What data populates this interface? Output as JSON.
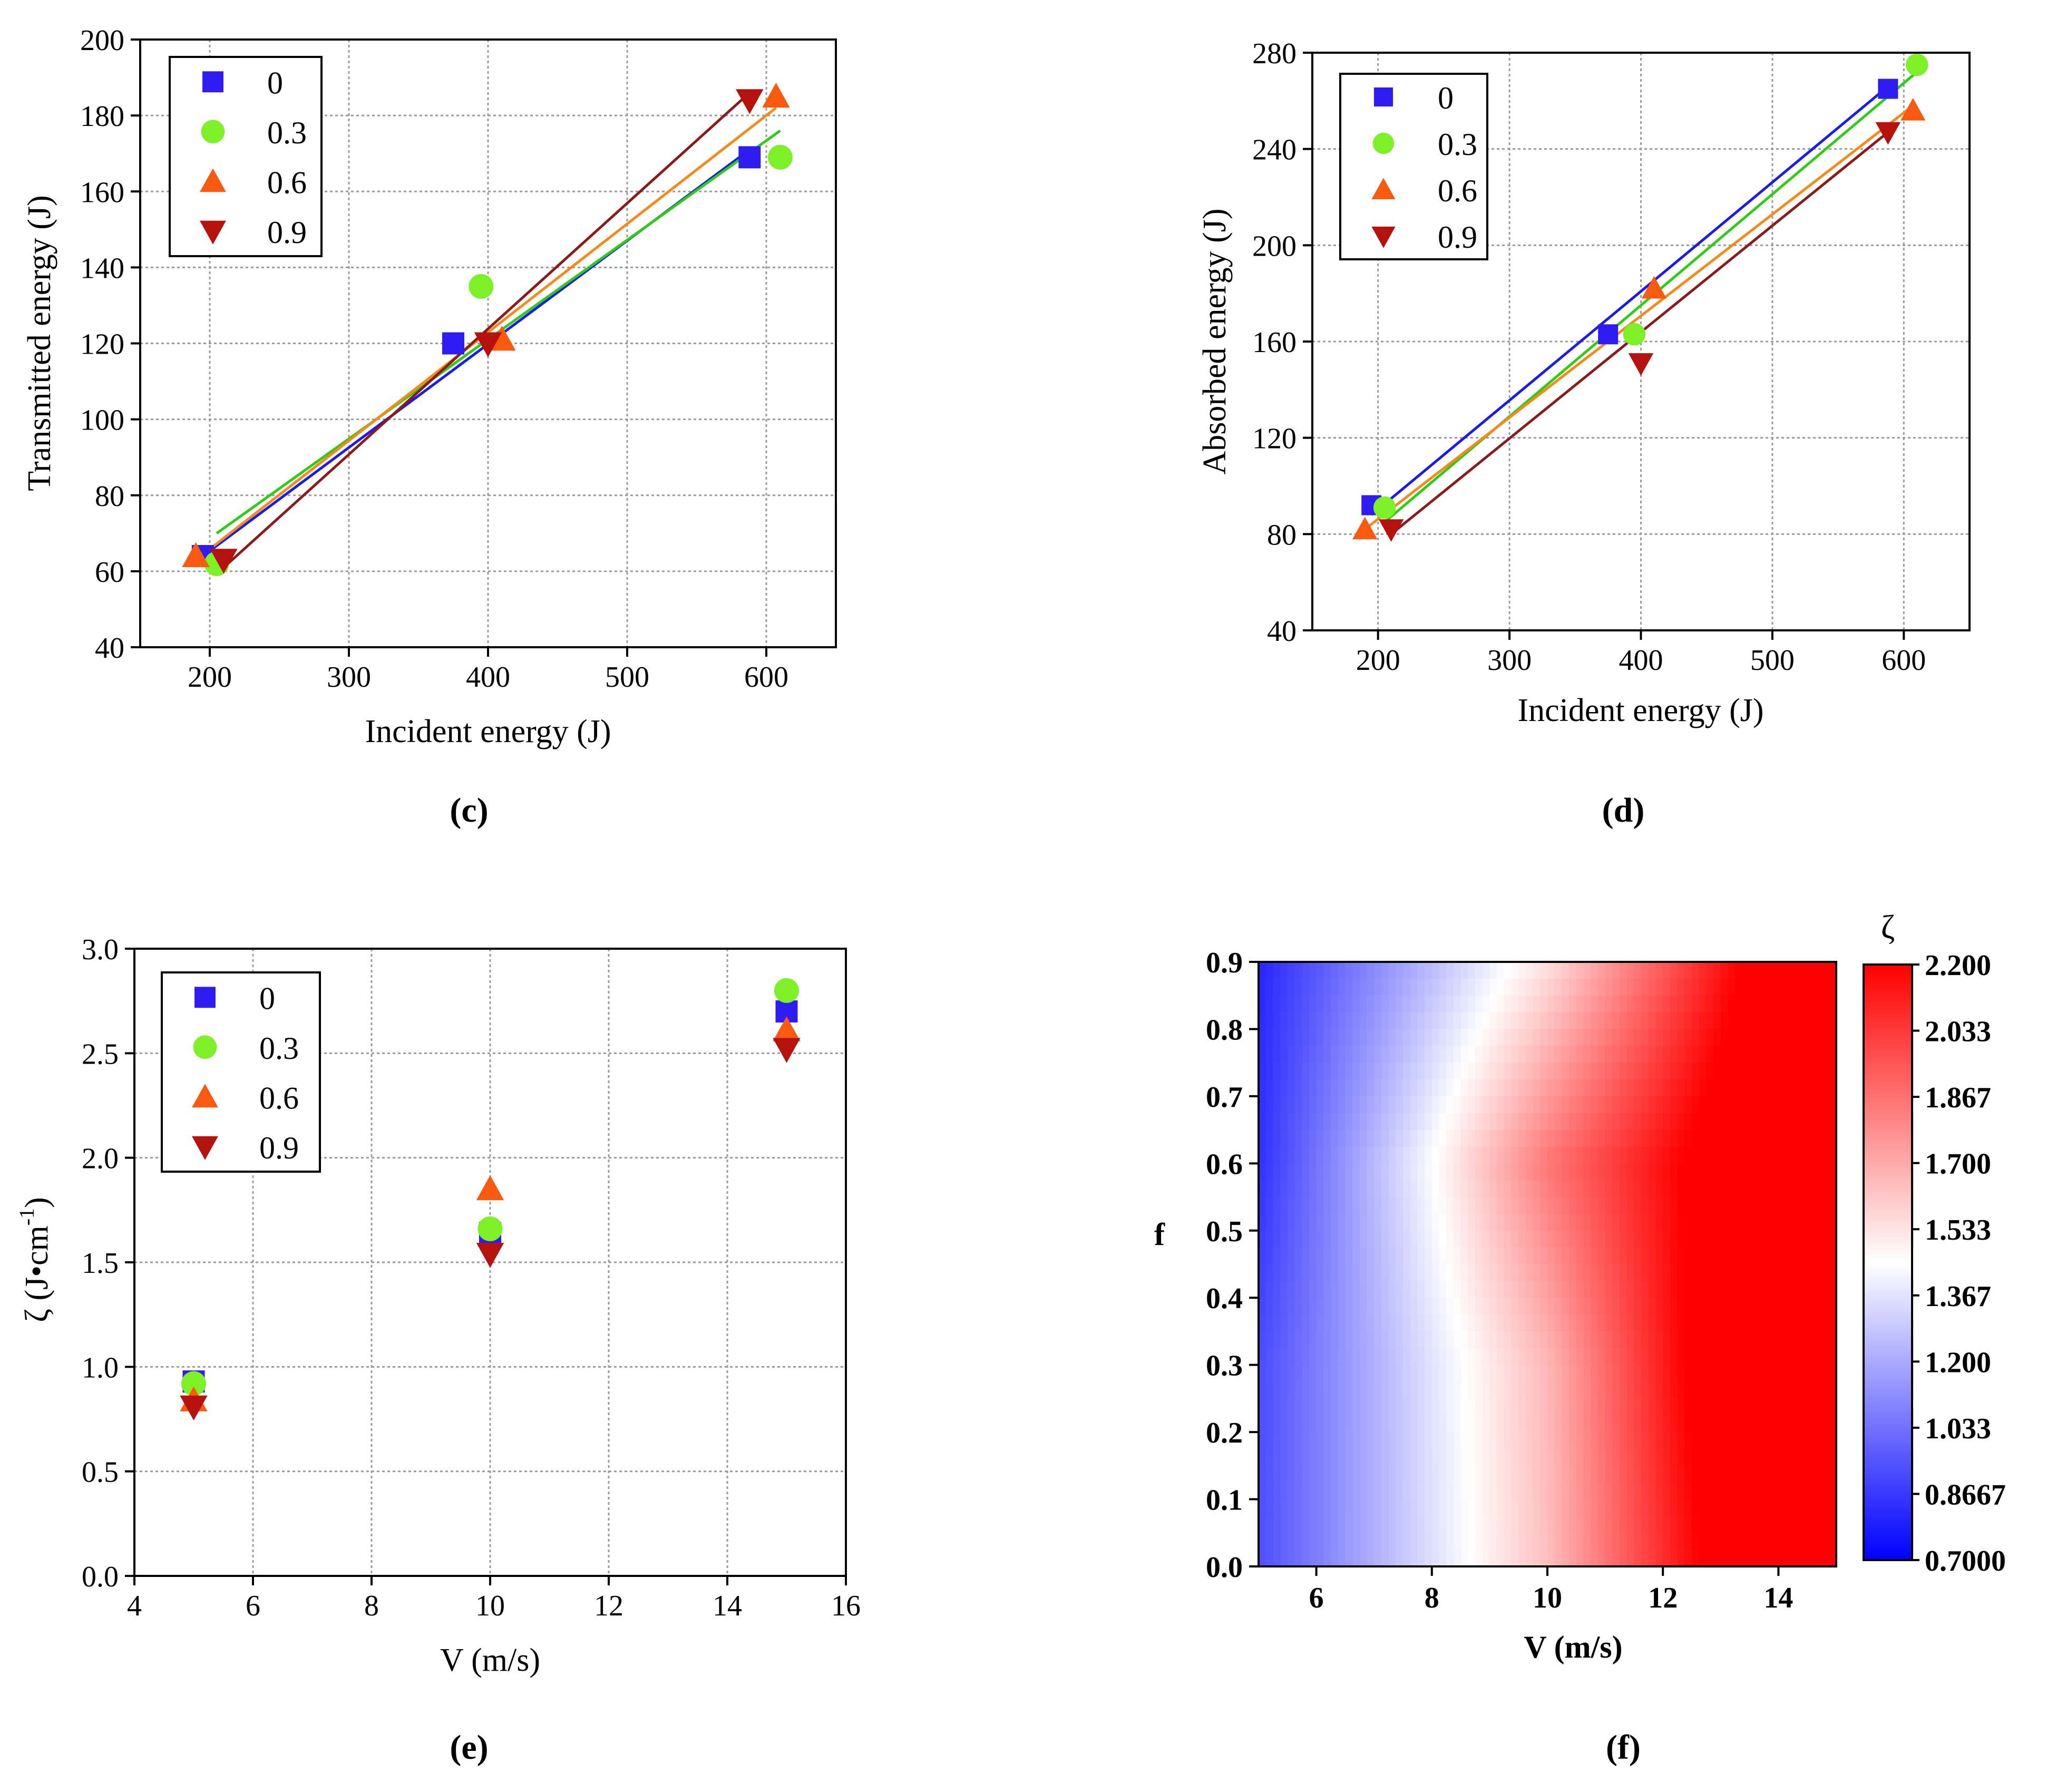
{
  "captions": [
    "(c)",
    "(d)",
    "(e)",
    "(f)"
  ],
  "colors": {
    "s0": "#2e1cf2",
    "s03": "#7ef027",
    "s06": "#fa5a0f",
    "s09": "#b5120e",
    "fit0": "#1a1af0",
    "fit03": "#2ecc14",
    "fit06": "#f5891a",
    "fit09": "#8b1a1a"
  },
  "chart_data": [
    {
      "id": "c",
      "type": "scatter",
      "title": "",
      "xlabel": "Incident energy (J)",
      "ylabel": "Transmitted energy (J)",
      "xlim": [
        150,
        650
      ],
      "ylim": [
        40,
        200
      ],
      "xticks": [
        200,
        300,
        400,
        500,
        600
      ],
      "yticks": [
        40,
        60,
        80,
        100,
        120,
        140,
        160,
        180,
        200
      ],
      "grid": true,
      "legend": "top-left",
      "series": [
        {
          "name": "0",
          "marker": "square",
          "color": "#2e1cf2",
          "fit_color": "#1a1af0",
          "x": [
            195,
            375,
            588
          ],
          "y": [
            64,
            120,
            169
          ],
          "fit": [
            [
              195,
              64
            ],
            [
              588,
              171
            ]
          ]
        },
        {
          "name": "0.3",
          "marker": "circle",
          "color": "#7ef027",
          "fit_color": "#2ecc14",
          "x": [
            205,
            395,
            610
          ],
          "y": [
            62,
            135,
            169
          ],
          "fit": [
            [
              205,
              70
            ],
            [
              610,
              176
            ]
          ]
        },
        {
          "name": "0.6",
          "marker": "triangle-up",
          "color": "#fa5a0f",
          "fit_color": "#f5891a",
          "x": [
            190,
            410,
            607
          ],
          "y": [
            64,
            121,
            185
          ],
          "fit": [
            [
              190,
              63
            ],
            [
              607,
              182
            ]
          ]
        },
        {
          "name": "0.9",
          "marker": "triangle-down",
          "color": "#b5120e",
          "fit_color": "#8b1a1a",
          "x": [
            210,
            400,
            588
          ],
          "y": [
            63,
            120,
            184
          ],
          "fit": [
            [
              210,
              61
            ],
            [
              588,
              186
            ]
          ]
        }
      ]
    },
    {
      "id": "d",
      "type": "scatter",
      "title": "",
      "xlabel": "Incident energy (J)",
      "ylabel": "Absorbed energy (J)",
      "xlim": [
        150,
        650
      ],
      "ylim": [
        40,
        280
      ],
      "xticks": [
        200,
        300,
        400,
        500,
        600
      ],
      "yticks": [
        40,
        80,
        120,
        160,
        200,
        240,
        280
      ],
      "grid": true,
      "legend": "top-left",
      "series": [
        {
          "name": "0",
          "marker": "square",
          "color": "#2e1cf2",
          "fit_color": "#1a1af0",
          "x": [
            195,
            375,
            588
          ],
          "y": [
            92,
            163,
            265
          ],
          "fit": [
            [
              195,
              88
            ],
            [
              588,
              266
            ]
          ]
        },
        {
          "name": "0.3",
          "marker": "circle",
          "color": "#7ef027",
          "fit_color": "#2ecc14",
          "x": [
            205,
            395,
            610
          ],
          "y": [
            91,
            163,
            275
          ],
          "fit": [
            [
              205,
              85
            ],
            [
              610,
              272
            ]
          ]
        },
        {
          "name": "0.6",
          "marker": "triangle-up",
          "color": "#fa5a0f",
          "fit_color": "#f5891a",
          "x": [
            190,
            410,
            607
          ],
          "y": [
            82,
            182,
            256
          ],
          "fit": [
            [
              190,
              82
            ],
            [
              607,
              258
            ]
          ]
        },
        {
          "name": "0.9",
          "marker": "triangle-down",
          "color": "#b5120e",
          "fit_color": "#8b1a1a",
          "x": [
            210,
            400,
            588
          ],
          "y": [
            82,
            151,
            247
          ],
          "fit": [
            [
              210,
              80
            ],
            [
              588,
              247
            ]
          ]
        }
      ]
    },
    {
      "id": "e",
      "type": "scatter",
      "title": "",
      "xlabel": "V (m/s)",
      "ylabel_main": "ζ (J•cm",
      "ylabel_sup": "-1",
      "ylabel_end": ")",
      "xlim": [
        4,
        16
      ],
      "ylim": [
        0,
        3
      ],
      "xticks": [
        4,
        6,
        8,
        10,
        12,
        14,
        16
      ],
      "xtick_labels": [
        "4",
        "6",
        "8",
        "10",
        "12",
        "14",
        "16"
      ],
      "yticks": [
        0,
        0.5,
        1.0,
        1.5,
        2.0,
        2.5,
        3.0
      ],
      "ytick_labels": [
        "0.0",
        "0.5",
        "1.0",
        "1.5",
        "2.0",
        "2.5",
        "3.0"
      ],
      "grid": true,
      "legend": "top-left",
      "series": [
        {
          "name": "0",
          "marker": "square",
          "color": "#2e1cf2",
          "x": [
            5,
            10,
            15
          ],
          "y": [
            0.93,
            1.64,
            2.7
          ]
        },
        {
          "name": "0.3",
          "marker": "circle",
          "color": "#7ef027",
          "x": [
            5,
            10,
            15
          ],
          "y": [
            0.92,
            1.66,
            2.8
          ]
        },
        {
          "name": "0.6",
          "marker": "triangle-up",
          "color": "#fa5a0f",
          "x": [
            5,
            10,
            15
          ],
          "y": [
            0.84,
            1.85,
            2.61
          ]
        },
        {
          "name": "0.9",
          "marker": "triangle-down",
          "color": "#b5120e",
          "x": [
            5,
            10,
            15
          ],
          "y": [
            0.81,
            1.54,
            2.52
          ]
        }
      ]
    },
    {
      "id": "f",
      "type": "heatmap",
      "title": "",
      "xlabel": "V (m/s)",
      "ylabel": "f",
      "xlim": [
        5,
        15
      ],
      "ylim": [
        0,
        0.9
      ],
      "xticks": [
        6,
        8,
        10,
        12,
        14
      ],
      "xtick_labels": [
        "6",
        "8",
        "10",
        "12",
        "14"
      ],
      "yticks": [
        0,
        0.1,
        0.2,
        0.3,
        0.4,
        0.5,
        0.6,
        0.7,
        0.8,
        0.9
      ],
      "ytick_labels": [
        "0.0",
        "0.1",
        "0.2",
        "0.3",
        "0.4",
        "0.5",
        "0.6",
        "0.7",
        "0.8",
        "0.9"
      ],
      "colorbar_title": "ζ",
      "colorbar_ticks": [
        "0.7000",
        "0.8667",
        "1.033",
        "1.200",
        "1.367",
        "1.533",
        "1.700",
        "1.867",
        "2.033",
        "2.200"
      ],
      "zlim": [
        0.7,
        2.2
      ],
      "colormap": [
        "#0000ff",
        "#ffffff",
        "#ff0000"
      ],
      "grid_x": [
        5,
        10,
        15
      ],
      "grid_y": [
        0,
        0.3,
        0.6,
        0.9
      ],
      "values": [
        [
          0.93,
          1.64,
          2.7
        ],
        [
          0.92,
          1.66,
          2.8
        ],
        [
          0.84,
          1.85,
          2.61
        ],
        [
          0.81,
          1.54,
          2.52
        ]
      ]
    }
  ]
}
